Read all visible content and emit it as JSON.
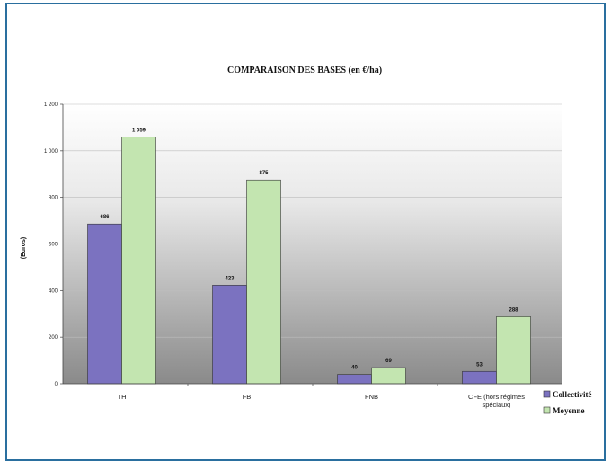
{
  "chart_data": {
    "type": "bar",
    "title": "COMPARAISON DES BASES (en €/ha)",
    "ylabel": "(Euros)",
    "xlabel": "",
    "ylim": [
      0,
      1200
    ],
    "yticks": [
      "0",
      "200",
      "400",
      "600",
      "800",
      "1 000",
      "1 200"
    ],
    "yticks_values": [
      0,
      200,
      400,
      600,
      800,
      1000,
      1200
    ],
    "categories": [
      [
        "TH"
      ],
      [
        "FB"
      ],
      [
        "FNB"
      ],
      [
        "CFE (hors régimes",
        "spéciaux)"
      ]
    ],
    "series": [
      {
        "name": "Collectivité",
        "values": [
          686,
          423,
          40,
          53
        ],
        "labels": [
          "686",
          "423",
          "40",
          "53"
        ],
        "color": "#7b72c0"
      },
      {
        "name": "Moyenne",
        "values": [
          1059,
          875,
          69,
          288
        ],
        "labels": [
          "1 059",
          "875",
          "69",
          "288"
        ],
        "color": "#c3e5b0"
      }
    ],
    "grid": true,
    "legend": "right"
  }
}
